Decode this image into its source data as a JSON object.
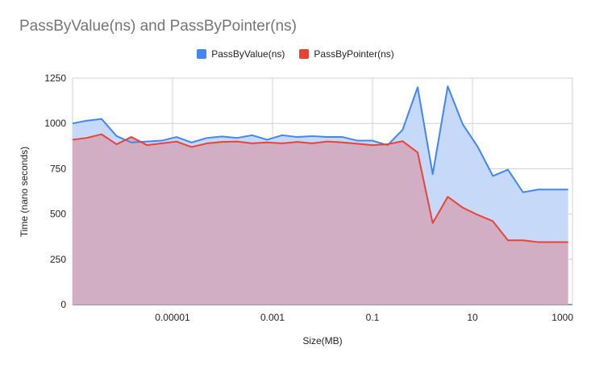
{
  "chart_data": {
    "type": "area",
    "title": "PassByValue(ns) and PassByPointer(ns)",
    "xlabel": "Size(MB)",
    "ylabel": "Time (nano seconds)",
    "x_scale": "log",
    "xlim": [
      1e-07,
      1000
    ],
    "ylim": [
      0,
      1250
    ],
    "x_ticks": [
      {
        "value": 1e-05,
        "label": "0.00001"
      },
      {
        "value": 0.001,
        "label": "0.001"
      },
      {
        "value": 0.1,
        "label": "0.1"
      },
      {
        "value": 10,
        "label": "10"
      },
      {
        "value": 1000,
        "label": "1000"
      }
    ],
    "y_ticks": [
      {
        "value": 0,
        "label": "0"
      },
      {
        "value": 250,
        "label": "250"
      },
      {
        "value": 500,
        "label": "500"
      },
      {
        "value": 750,
        "label": "750"
      },
      {
        "value": 1000,
        "label": "1000"
      },
      {
        "value": 1250,
        "label": "1250"
      }
    ],
    "grid": true,
    "legend": "top",
    "x": [
      1e-07,
      1.9e-07,
      3.8e-07,
      7.6e-07,
      1.5e-06,
      3.1e-06,
      6.1e-06,
      1.2e-05,
      2.4e-05,
      4.9e-05,
      9.8e-05,
      0.000195,
      0.00039,
      0.00078,
      0.00156,
      0.00313,
      0.00625,
      0.0125,
      0.025,
      0.05,
      0.1,
      0.2,
      0.4,
      0.8,
      1.6,
      3.2,
      6.4,
      12.8,
      25.6,
      51.2,
      102.4,
      204.8,
      409.6,
      819.2
    ],
    "series": [
      {
        "name": "PassByValue(ns)",
        "color": "#4285f4",
        "fill": "#c6d9f8",
        "values": [
          1000,
          1015,
          1025,
          930,
          895,
          900,
          905,
          925,
          895,
          920,
          928,
          920,
          935,
          910,
          935,
          925,
          930,
          925,
          925,
          905,
          905,
          880,
          965,
          1200,
          720,
          1205,
          995,
          870,
          710,
          745,
          620,
          635,
          635,
          635
        ]
      },
      {
        "name": "PassByPointer(ns)",
        "color": "#ea4335",
        "fill": "#d1aec3",
        "values": [
          910,
          920,
          940,
          885,
          925,
          880,
          890,
          900,
          870,
          890,
          898,
          900,
          890,
          895,
          890,
          898,
          890,
          900,
          895,
          888,
          880,
          885,
          902,
          840,
          450,
          595,
          535,
          495,
          460,
          355,
          355,
          345,
          345,
          345
        ]
      }
    ]
  }
}
